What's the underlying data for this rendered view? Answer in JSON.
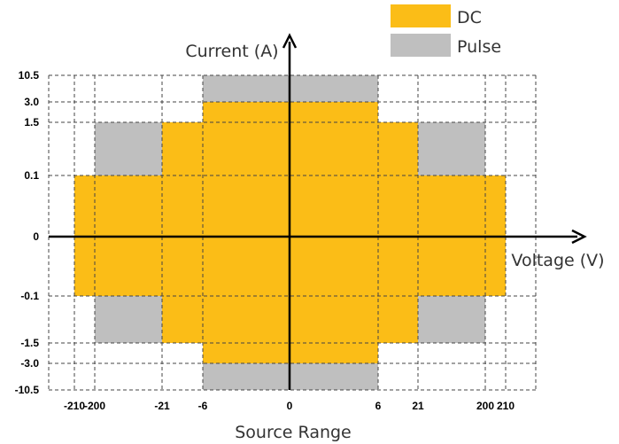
{
  "chart_data": {
    "type": "area",
    "title": "",
    "xlabel": "Voltage (V)",
    "ylabel": "Current (A)",
    "xcaption": "Source Range",
    "x_ticks": [
      "-210",
      "-200",
      "-21",
      "-6",
      "0",
      "6",
      "21",
      "200",
      "210"
    ],
    "y_ticks": [
      "10.5",
      "3.0",
      "1.5",
      "0.1",
      "0",
      "-0.1",
      "-1.5",
      "-3.0",
      "-10.5"
    ],
    "grid": true,
    "legend_position": "top-right",
    "series": [
      {
        "name": "DC",
        "color": "#fbbd17",
        "regions": [
          {
            "voltage": [
              -210,
              210
            ],
            "current": [
              -0.1,
              0.1
            ]
          },
          {
            "voltage": [
              -21,
              21
            ],
            "current": [
              -1.5,
              1.5
            ]
          },
          {
            "voltage": [
              -6,
              6
            ],
            "current": [
              -3.0,
              3.0
            ]
          }
        ]
      },
      {
        "name": "Pulse",
        "color": "#bfbfbf",
        "regions": [
          {
            "voltage": [
              -200,
              -21
            ],
            "current": [
              0.1,
              1.5
            ]
          },
          {
            "voltage": [
              21,
              200
            ],
            "current": [
              0.1,
              1.5
            ]
          },
          {
            "voltage": [
              -200,
              -21
            ],
            "current": [
              -1.5,
              -0.1
            ]
          },
          {
            "voltage": [
              21,
              200
            ],
            "current": [
              -1.5,
              -0.1
            ]
          },
          {
            "voltage": [
              -6,
              6
            ],
            "current": [
              3.0,
              10.5
            ]
          },
          {
            "voltage": [
              -6,
              6
            ],
            "current": [
              -10.5,
              -3.0
            ]
          }
        ]
      }
    ]
  }
}
